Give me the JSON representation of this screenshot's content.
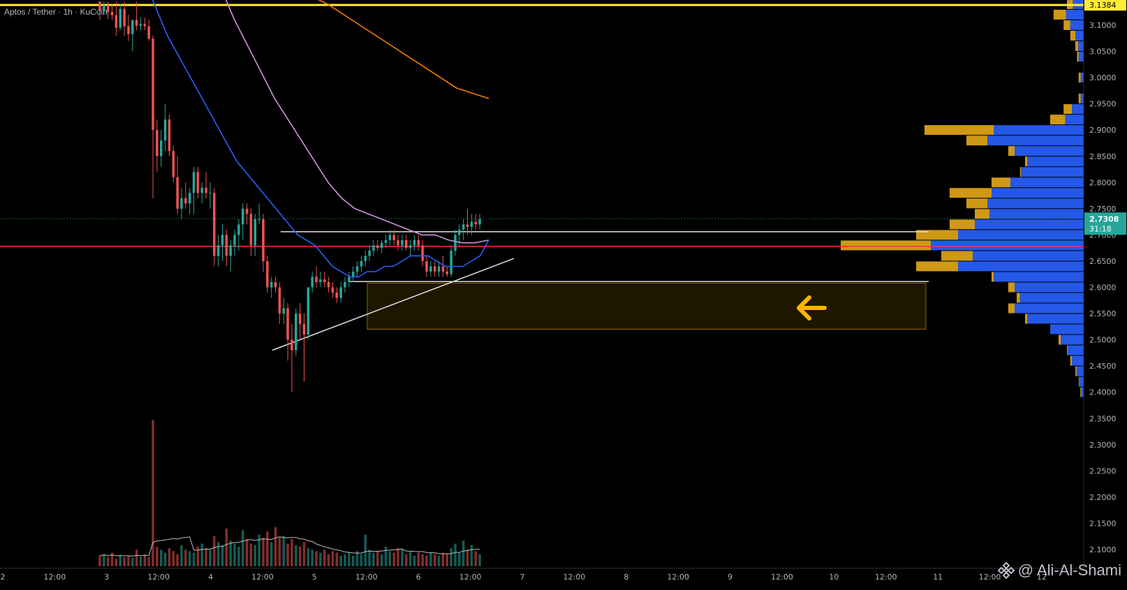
{
  "header": {
    "title": "Aptos / Tether · 1h · KuCoin"
  },
  "watermark": {
    "text": "@ Ali-Al-Shami"
  },
  "price_axis": {
    "ticks": [
      "3.1000",
      "3.0500",
      "3.0000",
      "2.9500",
      "2.9000",
      "2.8500",
      "2.8000",
      "2.7500",
      "2.7000",
      "2.6500",
      "2.6000",
      "2.5500",
      "2.5000",
      "2.4500",
      "2.4000",
      "2.3500",
      "2.3000",
      "2.2500",
      "2.2000",
      "2.1500",
      "2.1000"
    ],
    "high_label": "3.1384",
    "current_price": "2.7308",
    "countdown": "31:18"
  },
  "time_axis": {
    "labels": [
      "2",
      "12:00",
      "3",
      "12:00",
      "4",
      "12:00",
      "5",
      "12:00",
      "6",
      "12:00",
      "7",
      "12:00",
      "8",
      "12:00",
      "9",
      "12:00",
      "10",
      "12:00",
      "11",
      "12:00",
      "12"
    ]
  },
  "colors": {
    "up": "#26a69a",
    "down": "#ef5350",
    "ema_blue": "#2962ff",
    "ma_pink": "#ce93d8",
    "ma_orange": "#f57c00",
    "level_yellow": "#ffeb3b",
    "level_red": "#f23645",
    "zone": "#ffb300",
    "vp_blue": "#2962ff",
    "vp_gold": "#e6a817"
  },
  "chart_data": {
    "type": "candlestick",
    "symbol": "Aptos / Tether",
    "interval": "1h",
    "exchange": "KuCoin",
    "ylim": [
      2.05,
      3.145
    ],
    "candles": [
      [
        3.145,
        3.145,
        3.11,
        3.128
      ],
      [
        3.128,
        3.145,
        3.12,
        3.138
      ],
      [
        3.138,
        3.145,
        3.112,
        3.125
      ],
      [
        3.125,
        3.14,
        3.11,
        3.119
      ],
      [
        3.119,
        3.145,
        3.08,
        3.095
      ],
      [
        3.095,
        3.14,
        3.09,
        3.131
      ],
      [
        3.131,
        3.145,
        3.08,
        3.098
      ],
      [
        3.098,
        3.12,
        3.07,
        3.083
      ],
      [
        3.083,
        3.11,
        3.05,
        3.11
      ],
      [
        3.11,
        3.145,
        3.09,
        3.099
      ],
      [
        3.099,
        3.115,
        3.09,
        3.102
      ],
      [
        3.102,
        3.115,
        3.09,
        3.098
      ],
      [
        3.098,
        3.11,
        3.07,
        3.074
      ],
      [
        3.074,
        3.08,
        2.77,
        2.9
      ],
      [
        2.9,
        2.92,
        2.82,
        2.85
      ],
      [
        2.85,
        2.9,
        2.83,
        2.88
      ],
      [
        2.88,
        2.95,
        2.86,
        2.92
      ],
      [
        2.92,
        2.93,
        2.85,
        2.86
      ],
      [
        2.86,
        2.87,
        2.8,
        2.81
      ],
      [
        2.81,
        2.85,
        2.74,
        2.75
      ],
      [
        2.75,
        2.79,
        2.73,
        2.77
      ],
      [
        2.77,
        2.8,
        2.75,
        2.76
      ],
      [
        2.76,
        2.79,
        2.74,
        2.78
      ],
      [
        2.78,
        2.83,
        2.74,
        2.82
      ],
      [
        2.82,
        2.83,
        2.77,
        2.78
      ],
      [
        2.78,
        2.8,
        2.76,
        2.79
      ],
      [
        2.79,
        2.82,
        2.77,
        2.78
      ],
      [
        2.78,
        2.8,
        2.75,
        2.78
      ],
      [
        2.78,
        2.79,
        2.64,
        2.66
      ],
      [
        2.66,
        2.7,
        2.64,
        2.68
      ],
      [
        2.68,
        2.72,
        2.65,
        2.7
      ],
      [
        2.7,
        2.71,
        2.64,
        2.66
      ],
      [
        2.66,
        2.69,
        2.63,
        2.68
      ],
      [
        2.68,
        2.71,
        2.66,
        2.7
      ],
      [
        2.7,
        2.73,
        2.67,
        2.72
      ],
      [
        2.72,
        2.76,
        2.69,
        2.75
      ],
      [
        2.75,
        2.76,
        2.72,
        2.74
      ],
      [
        2.74,
        2.75,
        2.66,
        2.68
      ],
      [
        2.68,
        2.74,
        2.66,
        2.73
      ],
      [
        2.73,
        2.76,
        2.72,
        2.73
      ],
      [
        2.73,
        2.74,
        2.63,
        2.65
      ],
      [
        2.65,
        2.66,
        2.59,
        2.6
      ],
      [
        2.6,
        2.62,
        2.58,
        2.61
      ],
      [
        2.61,
        2.62,
        2.59,
        2.6
      ],
      [
        2.6,
        2.61,
        2.53,
        2.55
      ],
      [
        2.55,
        2.58,
        2.53,
        2.56
      ],
      [
        2.56,
        2.57,
        2.46,
        2.5
      ],
      [
        2.5,
        2.53,
        2.4,
        2.48
      ],
      [
        2.48,
        2.56,
        2.47,
        2.55
      ],
      [
        2.55,
        2.57,
        2.5,
        2.53
      ],
      [
        2.53,
        2.55,
        2.42,
        2.51
      ],
      [
        2.51,
        2.6,
        2.5,
        2.6
      ],
      [
        2.6,
        2.63,
        2.59,
        2.62
      ],
      [
        2.62,
        2.64,
        2.6,
        2.61
      ],
      [
        2.61,
        2.63,
        2.6,
        2.615
      ],
      [
        2.615,
        2.63,
        2.6,
        2.61
      ],
      [
        2.61,
        2.62,
        2.59,
        2.6
      ],
      [
        2.6,
        2.61,
        2.58,
        2.59
      ],
      [
        2.59,
        2.6,
        2.57,
        2.58
      ],
      [
        2.58,
        2.61,
        2.57,
        2.6
      ],
      [
        2.6,
        2.62,
        2.59,
        2.61
      ],
      [
        2.61,
        2.63,
        2.6,
        2.62
      ],
      [
        2.62,
        2.64,
        2.61,
        2.63
      ],
      [
        2.63,
        2.65,
        2.62,
        2.64
      ],
      [
        2.64,
        2.66,
        2.63,
        2.65
      ],
      [
        2.65,
        2.67,
        2.64,
        2.66
      ],
      [
        2.66,
        2.68,
        2.65,
        2.67
      ],
      [
        2.67,
        2.69,
        2.66,
        2.68
      ],
      [
        2.68,
        2.69,
        2.67,
        2.675
      ],
      [
        2.675,
        2.69,
        2.665,
        2.685
      ],
      [
        2.685,
        2.7,
        2.675,
        2.69
      ],
      [
        2.69,
        2.71,
        2.68,
        2.7
      ],
      [
        2.7,
        2.71,
        2.68,
        2.69
      ],
      [
        2.69,
        2.7,
        2.67,
        2.68
      ],
      [
        2.68,
        2.7,
        2.67,
        2.69
      ],
      [
        2.69,
        2.7,
        2.67,
        2.675
      ],
      [
        2.675,
        2.69,
        2.66,
        2.68
      ],
      [
        2.68,
        2.7,
        2.67,
        2.69
      ],
      [
        2.69,
        2.7,
        2.67,
        2.68
      ],
      [
        2.68,
        2.69,
        2.64,
        2.65
      ],
      [
        2.65,
        2.66,
        2.62,
        2.63
      ],
      [
        2.63,
        2.65,
        2.62,
        2.64
      ],
      [
        2.64,
        2.65,
        2.62,
        2.63
      ],
      [
        2.63,
        2.65,
        2.62,
        2.64
      ],
      [
        2.64,
        2.66,
        2.62,
        2.63
      ],
      [
        2.63,
        2.64,
        2.62,
        2.625
      ],
      [
        2.625,
        2.68,
        2.62,
        2.67
      ],
      [
        2.67,
        2.71,
        2.66,
        2.7
      ],
      [
        2.7,
        2.72,
        2.68,
        2.71
      ],
      [
        2.71,
        2.73,
        2.69,
        2.72
      ],
      [
        2.72,
        2.75,
        2.7,
        2.715
      ],
      [
        2.715,
        2.74,
        2.7,
        2.725
      ],
      [
        2.725,
        2.74,
        2.71,
        2.72
      ],
      [
        2.72,
        2.74,
        2.71,
        2.73
      ]
    ],
    "ema_blue": [
      3.24,
      3.2,
      3.16,
      3.12,
      3.08,
      3.05,
      3.02,
      2.99,
      2.96,
      2.93,
      2.9,
      2.87,
      2.84,
      2.82,
      2.8,
      2.78,
      2.76,
      2.74,
      2.72,
      2.7,
      2.69,
      2.68,
      2.66,
      2.64,
      2.63,
      2.62,
      2.62,
      2.63,
      2.63,
      2.64,
      2.64,
      2.65,
      2.66,
      2.66,
      2.66,
      2.65,
      2.64,
      2.64,
      2.64,
      2.65,
      2.66,
      2.69
    ],
    "ma_pink": [
      3.45,
      3.38,
      3.3,
      3.23,
      3.17,
      3.11,
      3.06,
      3.01,
      2.96,
      2.92,
      2.88,
      2.84,
      2.8,
      2.77,
      2.75,
      2.74,
      2.73,
      2.72,
      2.71,
      2.7,
      2.7,
      2.69,
      2.685,
      2.685,
      2.69
    ],
    "ma_orange": [
      3.19,
      3.17,
      3.155,
      3.14,
      3.12,
      3.1,
      3.08,
      3.06,
      3.04,
      3.02,
      3.0,
      2.98,
      2.97,
      2.96
    ],
    "volume": [
      14,
      16,
      12,
      18,
      10,
      15,
      12,
      14,
      11,
      22,
      13,
      16,
      12,
      194,
      26,
      22,
      18,
      24,
      20,
      16,
      28,
      22,
      20,
      18,
      26,
      30,
      24,
      22,
      40,
      32,
      28,
      50,
      34,
      30,
      26,
      48,
      36,
      30,
      28,
      42,
      38,
      46,
      32,
      52,
      38,
      40,
      30,
      36,
      28,
      26,
      32,
      24,
      22,
      20,
      18,
      22,
      16,
      20,
      18,
      14,
      16,
      18,
      14,
      20,
      16,
      42,
      22,
      18,
      20,
      16,
      26,
      20,
      18,
      24,
      22,
      16,
      20,
      14,
      18,
      16,
      14,
      18,
      16,
      14,
      18,
      16,
      24,
      30,
      18,
      34,
      22,
      28,
      20,
      16
    ],
    "levels": {
      "high_line": 3.1384,
      "red_line": 2.678,
      "white_upper": 2.706,
      "white_lower": 2.611,
      "current": 2.7308
    },
    "demand_zone": [
      2.52,
      2.608
    ],
    "trendline": [
      [
        2.48,
        2.655
      ]
    ],
    "volume_profile": {
      "bins": [
        [
          3.14,
          0.1,
          0.04
        ],
        [
          3.12,
          0.18,
          0.06
        ],
        [
          3.1,
          0.12,
          0.05
        ],
        [
          3.08,
          0.08,
          0.03
        ],
        [
          3.06,
          0.05,
          0.02
        ],
        [
          3.04,
          0.04,
          0.02
        ],
        [
          3.0,
          0.03,
          0.01
        ],
        [
          2.96,
          0.03,
          0.01
        ],
        [
          2.94,
          0.12,
          0.04
        ],
        [
          2.92,
          0.2,
          0.06
        ],
        [
          2.9,
          0.95,
          0.3
        ],
        [
          2.88,
          0.7,
          0.4
        ],
        [
          2.86,
          0.45,
          0.3
        ],
        [
          2.84,
          0.35,
          0.25
        ],
        [
          2.82,
          0.38,
          0.28
        ],
        [
          2.8,
          0.55,
          0.3
        ],
        [
          2.78,
          0.8,
          0.35
        ],
        [
          2.76,
          0.7,
          0.4
        ],
        [
          2.74,
          0.65,
          0.4
        ],
        [
          2.72,
          0.8,
          0.45
        ],
        [
          2.7,
          1.0,
          0.5
        ],
        [
          2.68,
          1.45,
          0.55
        ],
        [
          2.66,
          0.85,
          0.45
        ],
        [
          2.64,
          1.0,
          0.5
        ],
        [
          2.62,
          0.55,
          0.4
        ],
        [
          2.6,
          0.45,
          0.3
        ],
        [
          2.58,
          0.4,
          0.28
        ],
        [
          2.56,
          0.45,
          0.3
        ],
        [
          2.54,
          0.35,
          0.25
        ],
        [
          2.52,
          0.2,
          0.15
        ],
        [
          2.5,
          0.15,
          0.1
        ],
        [
          2.48,
          0.1,
          0.07
        ],
        [
          2.46,
          0.08,
          0.05
        ],
        [
          2.44,
          0.05,
          0.03
        ],
        [
          2.42,
          0.03,
          0.02
        ],
        [
          2.4,
          0.02,
          0.01
        ]
      ]
    }
  }
}
